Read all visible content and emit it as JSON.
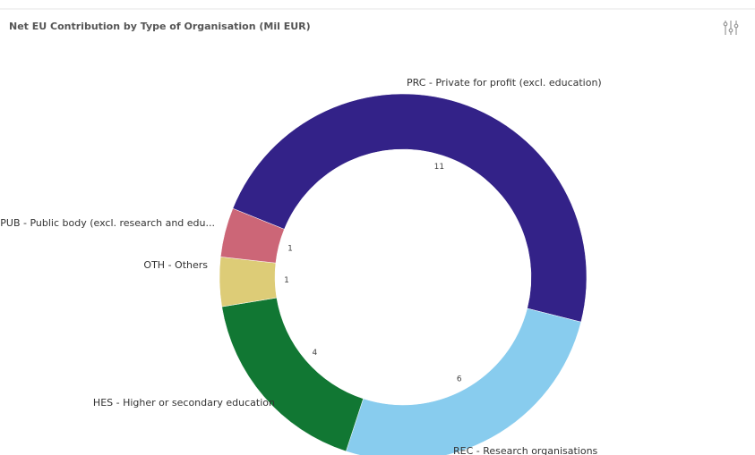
{
  "chart_data": {
    "type": "donut",
    "title": "Net EU Contribution by Type of Organisation (Mil EUR)",
    "categories": [
      "PRC - Private for profit (excl. education)",
      "REC - Research organisations",
      "HES - Higher or secondary education",
      "OTH - Others",
      "PUB - Public body (excl. research and edu..."
    ],
    "values": [
      11,
      6,
      4,
      1,
      1
    ],
    "colors": [
      "#332288",
      "#88ccee",
      "#117733",
      "#ddcc77",
      "#cc6677"
    ]
  }
}
